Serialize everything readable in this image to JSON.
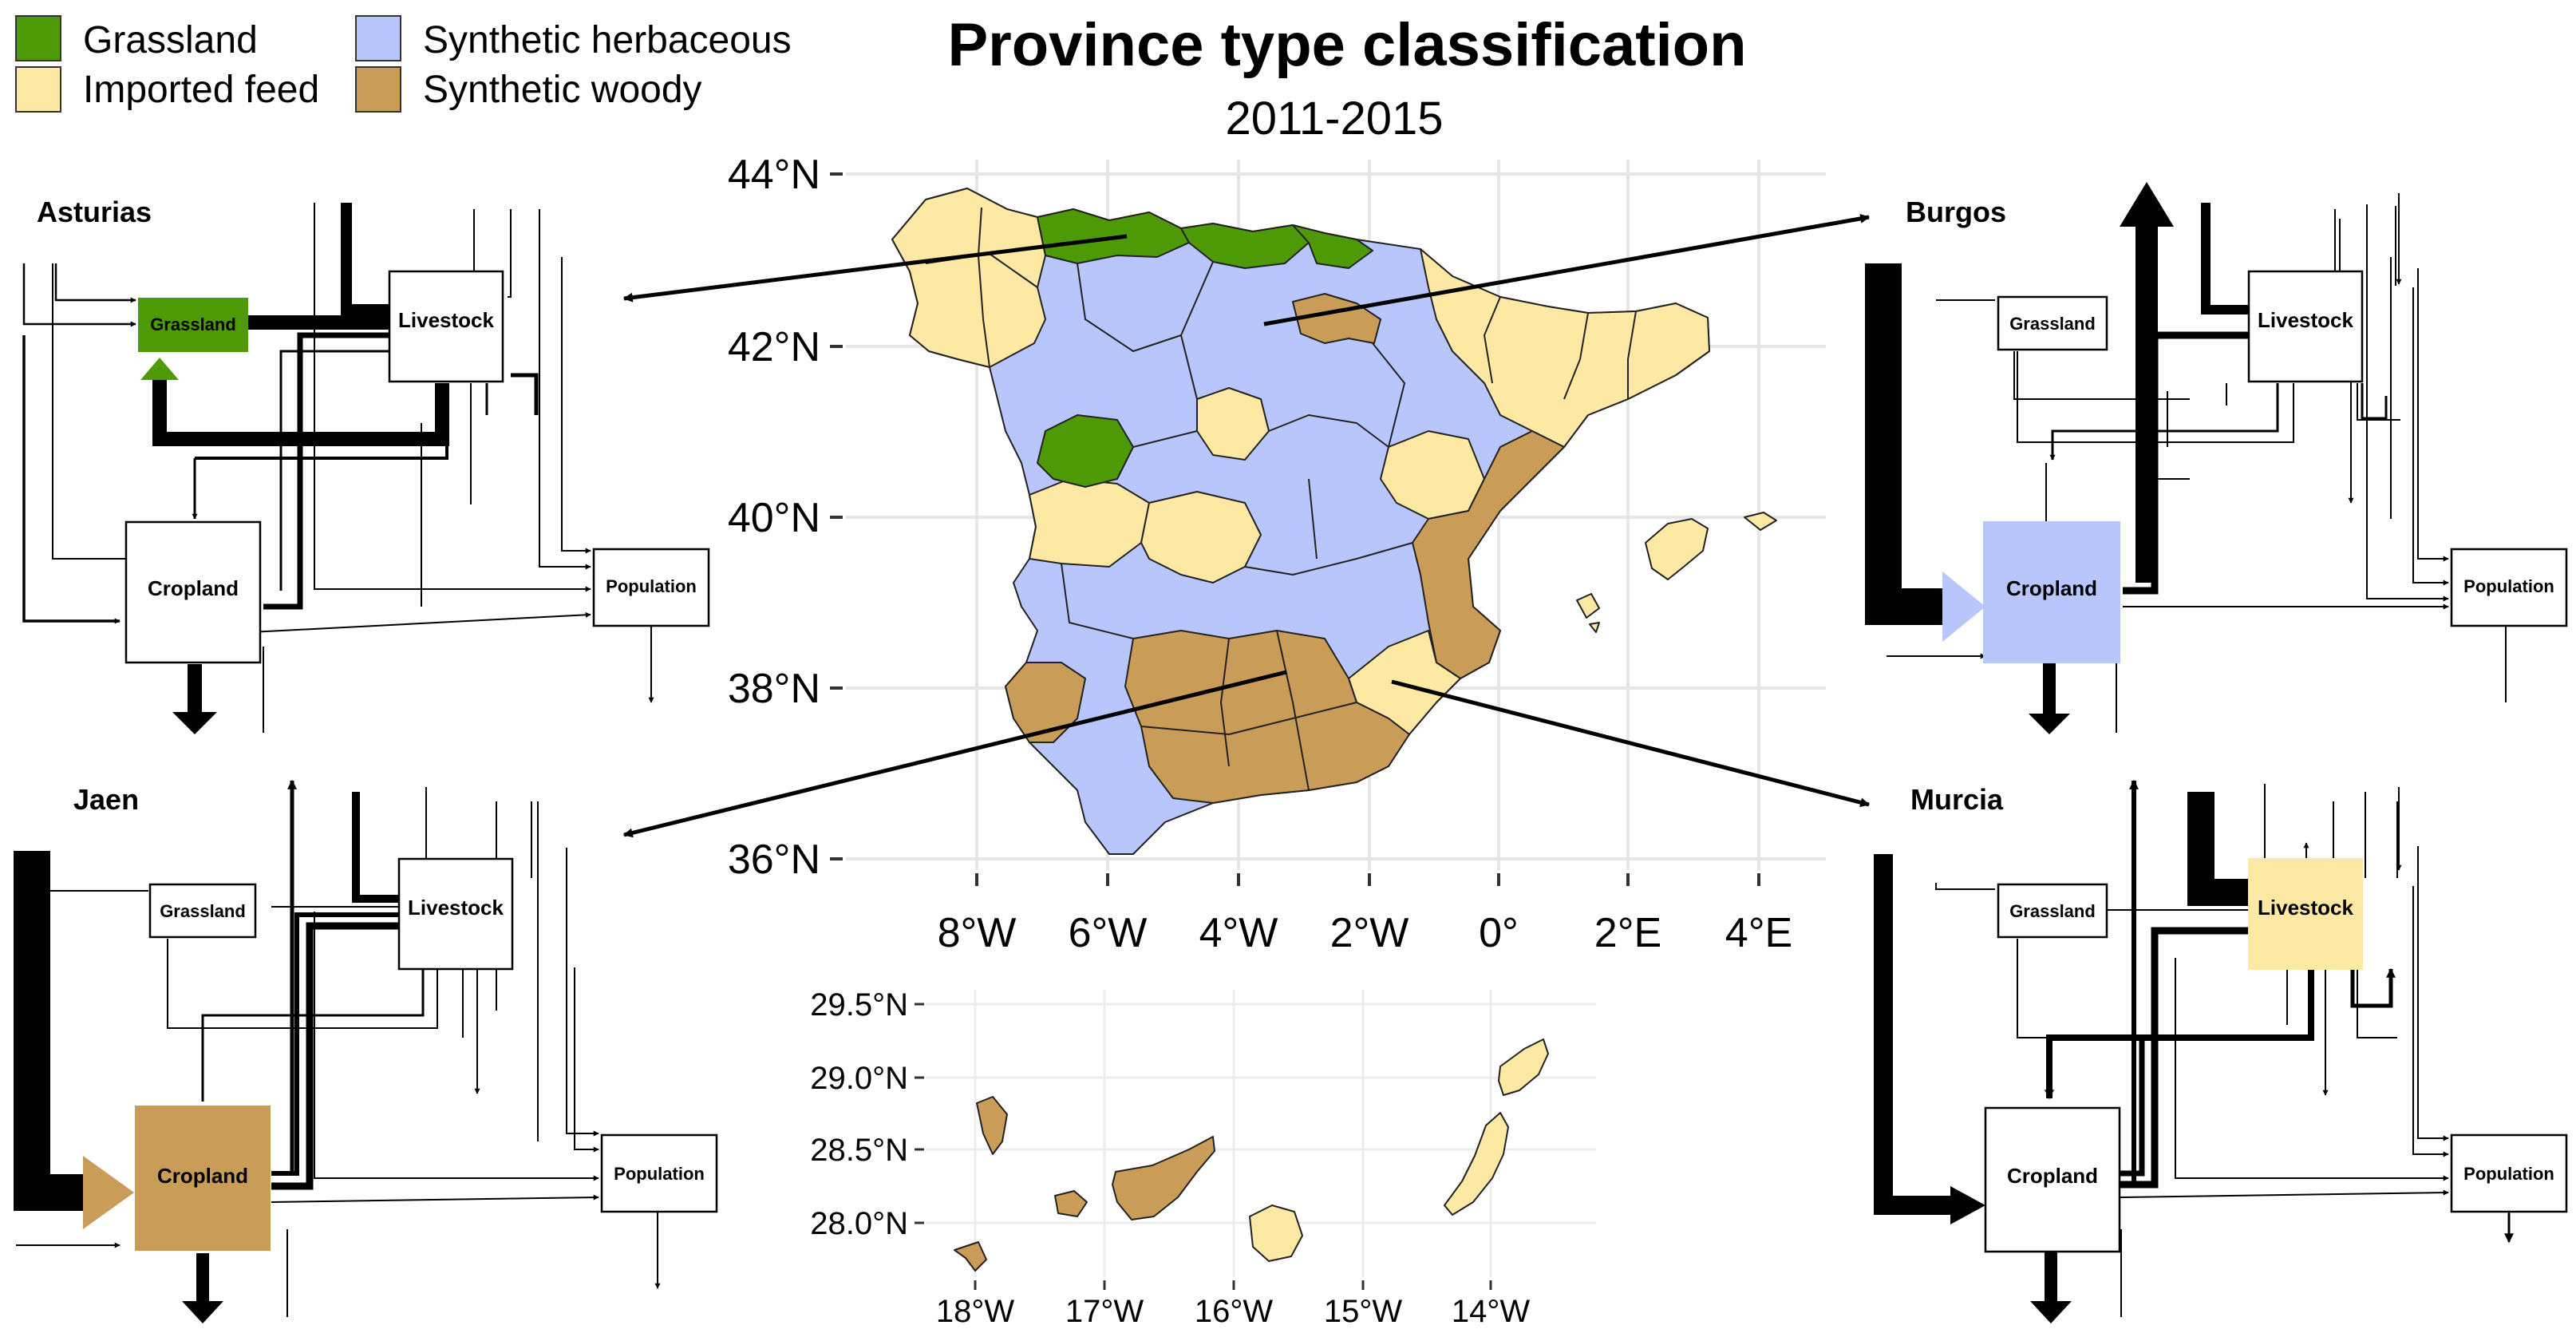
{
  "title": "Province type classification",
  "subtitle": "2011-2015",
  "legend": [
    {
      "label": "Grassland",
      "color": "#4e9a06"
    },
    {
      "label": "Imported feed",
      "color": "#fde8a4"
    },
    {
      "label": "Synthetic herbaceous",
      "color": "#b8c6fc"
    },
    {
      "label": "Synthetic woody",
      "color": "#c99c58"
    }
  ],
  "main_map": {
    "lat_ticks": [
      "44°N",
      "42°N",
      "40°N",
      "38°N",
      "36°N"
    ],
    "lon_ticks": [
      "8°W",
      "6°W",
      "4°W",
      "2°W",
      "0°",
      "2°E",
      "4°E"
    ]
  },
  "canary_map": {
    "lat_ticks": [
      "29.5°N",
      "29.0°N",
      "28.5°N",
      "28.0°N"
    ],
    "lon_ticks": [
      "18°W",
      "17°W",
      "16°W",
      "15°W",
      "14°W"
    ]
  },
  "nodes": {
    "grassland": "Grassland",
    "livestock": "Livestock",
    "cropland": "Cropland",
    "population": "Population"
  },
  "provinces": [
    {
      "name": "Asturias",
      "type": "Grassland",
      "color": "#4e9a06"
    },
    {
      "name": "Burgos",
      "type": "Synthetic herbaceous",
      "color": "#b8c6fc"
    },
    {
      "name": "Jaen",
      "type": "Synthetic woody",
      "color": "#c99c58"
    },
    {
      "name": "Murcia",
      "type": "Imported feed",
      "color": "#fde8a4"
    }
  ]
}
